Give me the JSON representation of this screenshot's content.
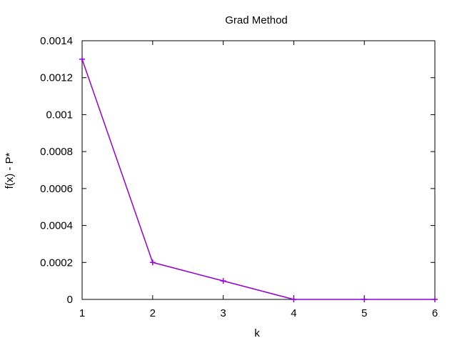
{
  "chart_data": {
    "type": "line",
    "title": "Grad Method",
    "xlabel": "k",
    "ylabel": "f(x) - P*",
    "xlim": [
      1,
      6
    ],
    "ylim": [
      0,
      0.0014
    ],
    "x_ticks": [
      "1",
      "2",
      "3",
      "4",
      "5",
      "6"
    ],
    "y_ticks": [
      "0",
      "0.0002",
      "0.0004",
      "0.0006",
      "0.0008",
      "0.001",
      "0.0012",
      "0.0014"
    ],
    "grid": false,
    "legend": "none",
    "series": [
      {
        "x": [
          1,
          2,
          3,
          4,
          5,
          6
        ],
        "y": [
          0.0013,
          0.0002,
          0.0001,
          0.0,
          0.0,
          0.0
        ],
        "color": "#9400d3",
        "marker": "plus"
      }
    ]
  }
}
